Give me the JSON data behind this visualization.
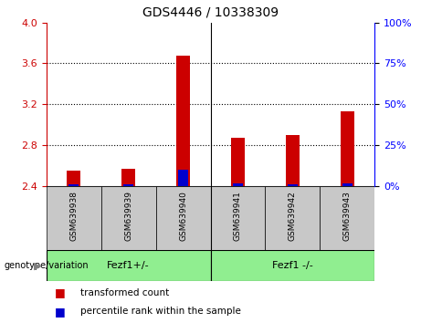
{
  "title": "GDS4446 / 10338309",
  "samples": [
    "GSM639938",
    "GSM639939",
    "GSM639940",
    "GSM639941",
    "GSM639942",
    "GSM639943"
  ],
  "red_values": [
    2.55,
    2.57,
    3.68,
    2.87,
    2.9,
    3.13
  ],
  "blue_values": [
    2.415,
    2.415,
    2.56,
    2.42,
    2.415,
    2.42
  ],
  "baseline": 2.4,
  "ylim_left": [
    2.4,
    4.0
  ],
  "ylim_right": [
    0,
    100
  ],
  "left_yticks": [
    2.4,
    2.8,
    3.2,
    3.6,
    4.0
  ],
  "right_yticks": [
    0,
    25,
    50,
    75,
    100
  ],
  "groups": [
    {
      "label": "Fezf1+/-",
      "start": 0,
      "end": 3
    },
    {
      "label": "Fezf1 -/-",
      "start": 3,
      "end": 6
    }
  ],
  "group_label": "genotype/variation",
  "legend_items": [
    {
      "label": "transformed count",
      "color": "red"
    },
    {
      "label": "percentile rank within the sample",
      "color": "blue"
    }
  ],
  "bar_color": "#cc0000",
  "blue_color": "#0000cc",
  "bar_width": 0.25,
  "dotted_lines": [
    2.8,
    3.2,
    3.6
  ],
  "bg_color": "#c8c8c8",
  "green_color": "#90EE90",
  "plot_bg": "#ffffff",
  "title_fontsize": 10,
  "axis_label_fontsize": 8,
  "tick_fontsize": 8,
  "sample_fontsize": 6.5,
  "group_fontsize": 8,
  "legend_fontsize": 7.5
}
